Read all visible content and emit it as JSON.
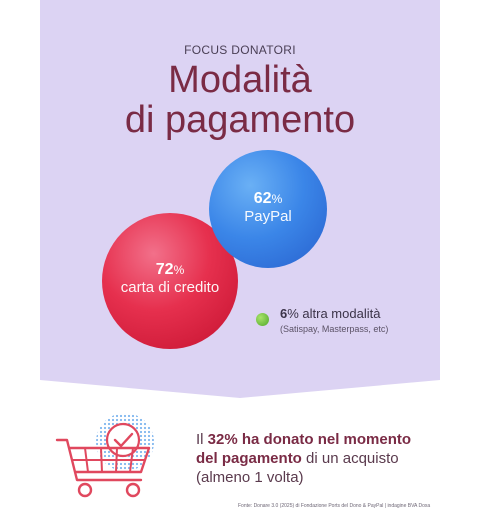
{
  "header": {
    "eyebrow": "FOCUS DONATORI",
    "title_line1": "Modalità",
    "title_line2": "di pagamento"
  },
  "chart_data": {
    "type": "bubble",
    "series": [
      {
        "value": 72,
        "label": "carta di credito",
        "color": "#e8344e"
      },
      {
        "value": 62,
        "label": "PayPal",
        "color": "#3b86e8"
      },
      {
        "value": 6,
        "label": "altra modalità",
        "note": "(Satispay, Masterpass, etc)",
        "color": "#6bc23a"
      }
    ]
  },
  "bubbles": {
    "paypal": {
      "pct": "62",
      "sym": "%",
      "label": "PayPal"
    },
    "card": {
      "pct": "72",
      "sym": "%",
      "label": "carta di credito"
    }
  },
  "other": {
    "pct": "6",
    "sym": "%",
    "label": " altra modalità",
    "note": "(Satispay, Masterpass, etc)"
  },
  "stat": {
    "part1": "Il ",
    "highlight1": "32% ha donato nel momento",
    "highlight2": "del pagamento",
    "part2": " di un acquisto",
    "part3": "(almeno 1 volta)"
  },
  "source": "Fonte: Donare 3.0 (2025) di Fondazione Ports del Dono & PayPal | indagine BVA Doxa",
  "colors": {
    "panel": "#dcd3f3",
    "accent": "#7a2b45",
    "cart": "#e0485e",
    "dots": "#7fb6ee"
  },
  "icons": [
    "shopping-cart-icon",
    "checkmark-icon"
  ]
}
